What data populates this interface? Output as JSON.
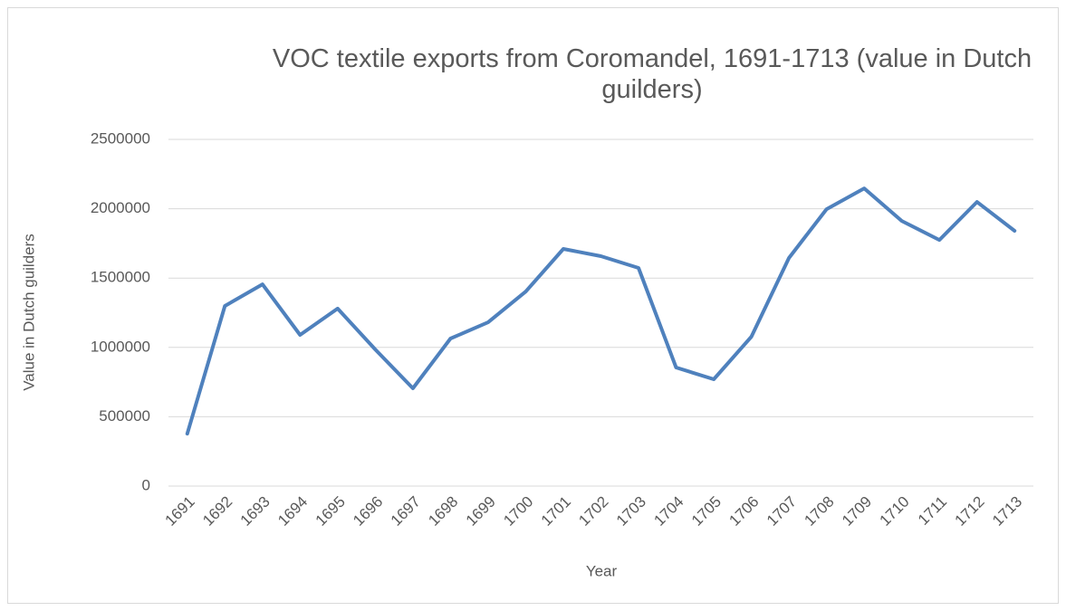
{
  "chart_data": {
    "type": "line",
    "title": "VOC textile exports from Coromandel, 1691-1713 (value in Dutch guilders)",
    "x_label": "Year",
    "y_label": "Value in Dutch guilders",
    "categories": [
      "1691",
      "1692",
      "1693",
      "1694",
      "1695",
      "1696",
      "1697",
      "1698",
      "1699",
      "1700",
      "1701",
      "1702",
      "1703",
      "1704",
      "1705",
      "1706",
      "1707",
      "1708",
      "1709",
      "1710",
      "1711",
      "1712",
      "1713"
    ],
    "series": [
      {
        "name": "Value",
        "color": "#4f81bd",
        "values": [
          378000,
          1299000,
          1455000,
          1090000,
          1280000,
          985000,
          705000,
          1064000,
          1181000,
          1403000,
          1710000,
          1658000,
          1573000,
          855000,
          770000,
          1077000,
          1645000,
          1997000,
          2147000,
          1912000,
          1775000,
          2049000,
          1841000
        ]
      }
    ],
    "ylim": [
      0,
      2500000
    ],
    "yticks": [
      0,
      500000,
      1000000,
      1500000,
      2000000,
      2500000
    ],
    "grid": true
  }
}
